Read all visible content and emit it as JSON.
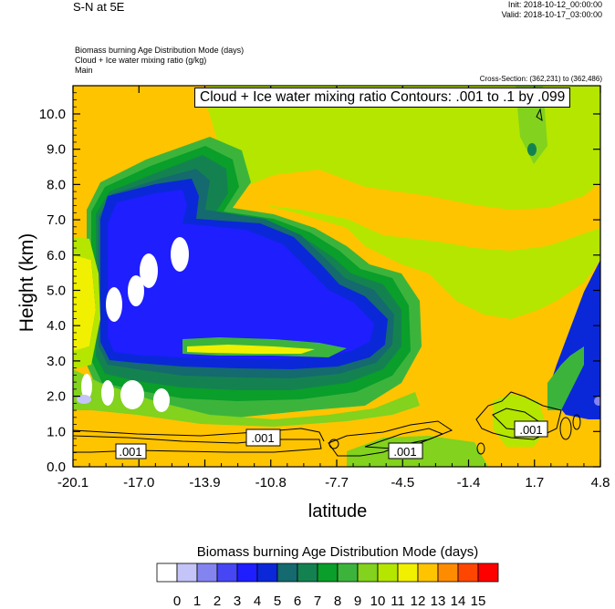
{
  "header": {
    "title": "S-N at 5E",
    "init": "Init: 2018-10-12_00:00:00",
    "valid": "Valid: 2018-10-17_03:00:00",
    "field1": "Biomass burning Age Distribution Mode   (days)",
    "field2": "Cloud + Ice water mixing ratio   (g/kg)",
    "field3": "Main",
    "cross_section": "Cross-Section: (362,231) to (362,486)",
    "contour_info": "Cloud + Ice water mixing ratio Contours: .001 to .1 by .099"
  },
  "colors": {
    "orange": "#FFC400",
    "yellow_green": "#B4E600",
    "light_green": "#82D21E",
    "mid_green": "#3CB43C",
    "green": "#0A9E2A",
    "dark_green": "#148250",
    "teal": "#146A6E",
    "blue": "#0A28D8",
    "bright_blue": "#1E1EFF",
    "yellow": "#F0F000"
  },
  "chart_data": {
    "type": "heatmap",
    "title": "Biomass burning Age Distribution Mode   (days)",
    "xlabel": "latitude",
    "ylabel": "Height (km)",
    "x_ticks": [
      "-20.1",
      "-17.0",
      "-13.9",
      "-10.8",
      "-7.7",
      "-4.5",
      "-1.4",
      "1.7",
      "4.8"
    ],
    "y_ticks": [
      "0.0",
      "1.0",
      "2.0",
      "3.0",
      "4.0",
      "5.0",
      "6.0",
      "7.0",
      "8.0",
      "9.0",
      "10.0"
    ],
    "xlim": [
      -20.1,
      4.8
    ],
    "ylim": [
      0.0,
      10.8
    ],
    "colorbar": {
      "title": "Biomass burning Age Distribution Mode  (days)",
      "labels": [
        "0",
        "1",
        "2",
        "3",
        "4",
        "5",
        "6",
        "7",
        "8",
        "9",
        "10",
        "11",
        "12",
        "13",
        "14",
        "15"
      ],
      "colors": [
        "#FFFFFF",
        "#C4C4F8",
        "#8484F0",
        "#4646F4",
        "#1E1EFF",
        "#0A28D8",
        "#146A6E",
        "#148250",
        "#0A9E2A",
        "#3CB43C",
        "#82D21E",
        "#B4E600",
        "#F0F000",
        "#FFC400",
        "#FF8C00",
        "#FF4600",
        "#FF0000"
      ]
    },
    "contour_labels": [
      ".001",
      ".001",
      ".001",
      ".001"
    ]
  }
}
